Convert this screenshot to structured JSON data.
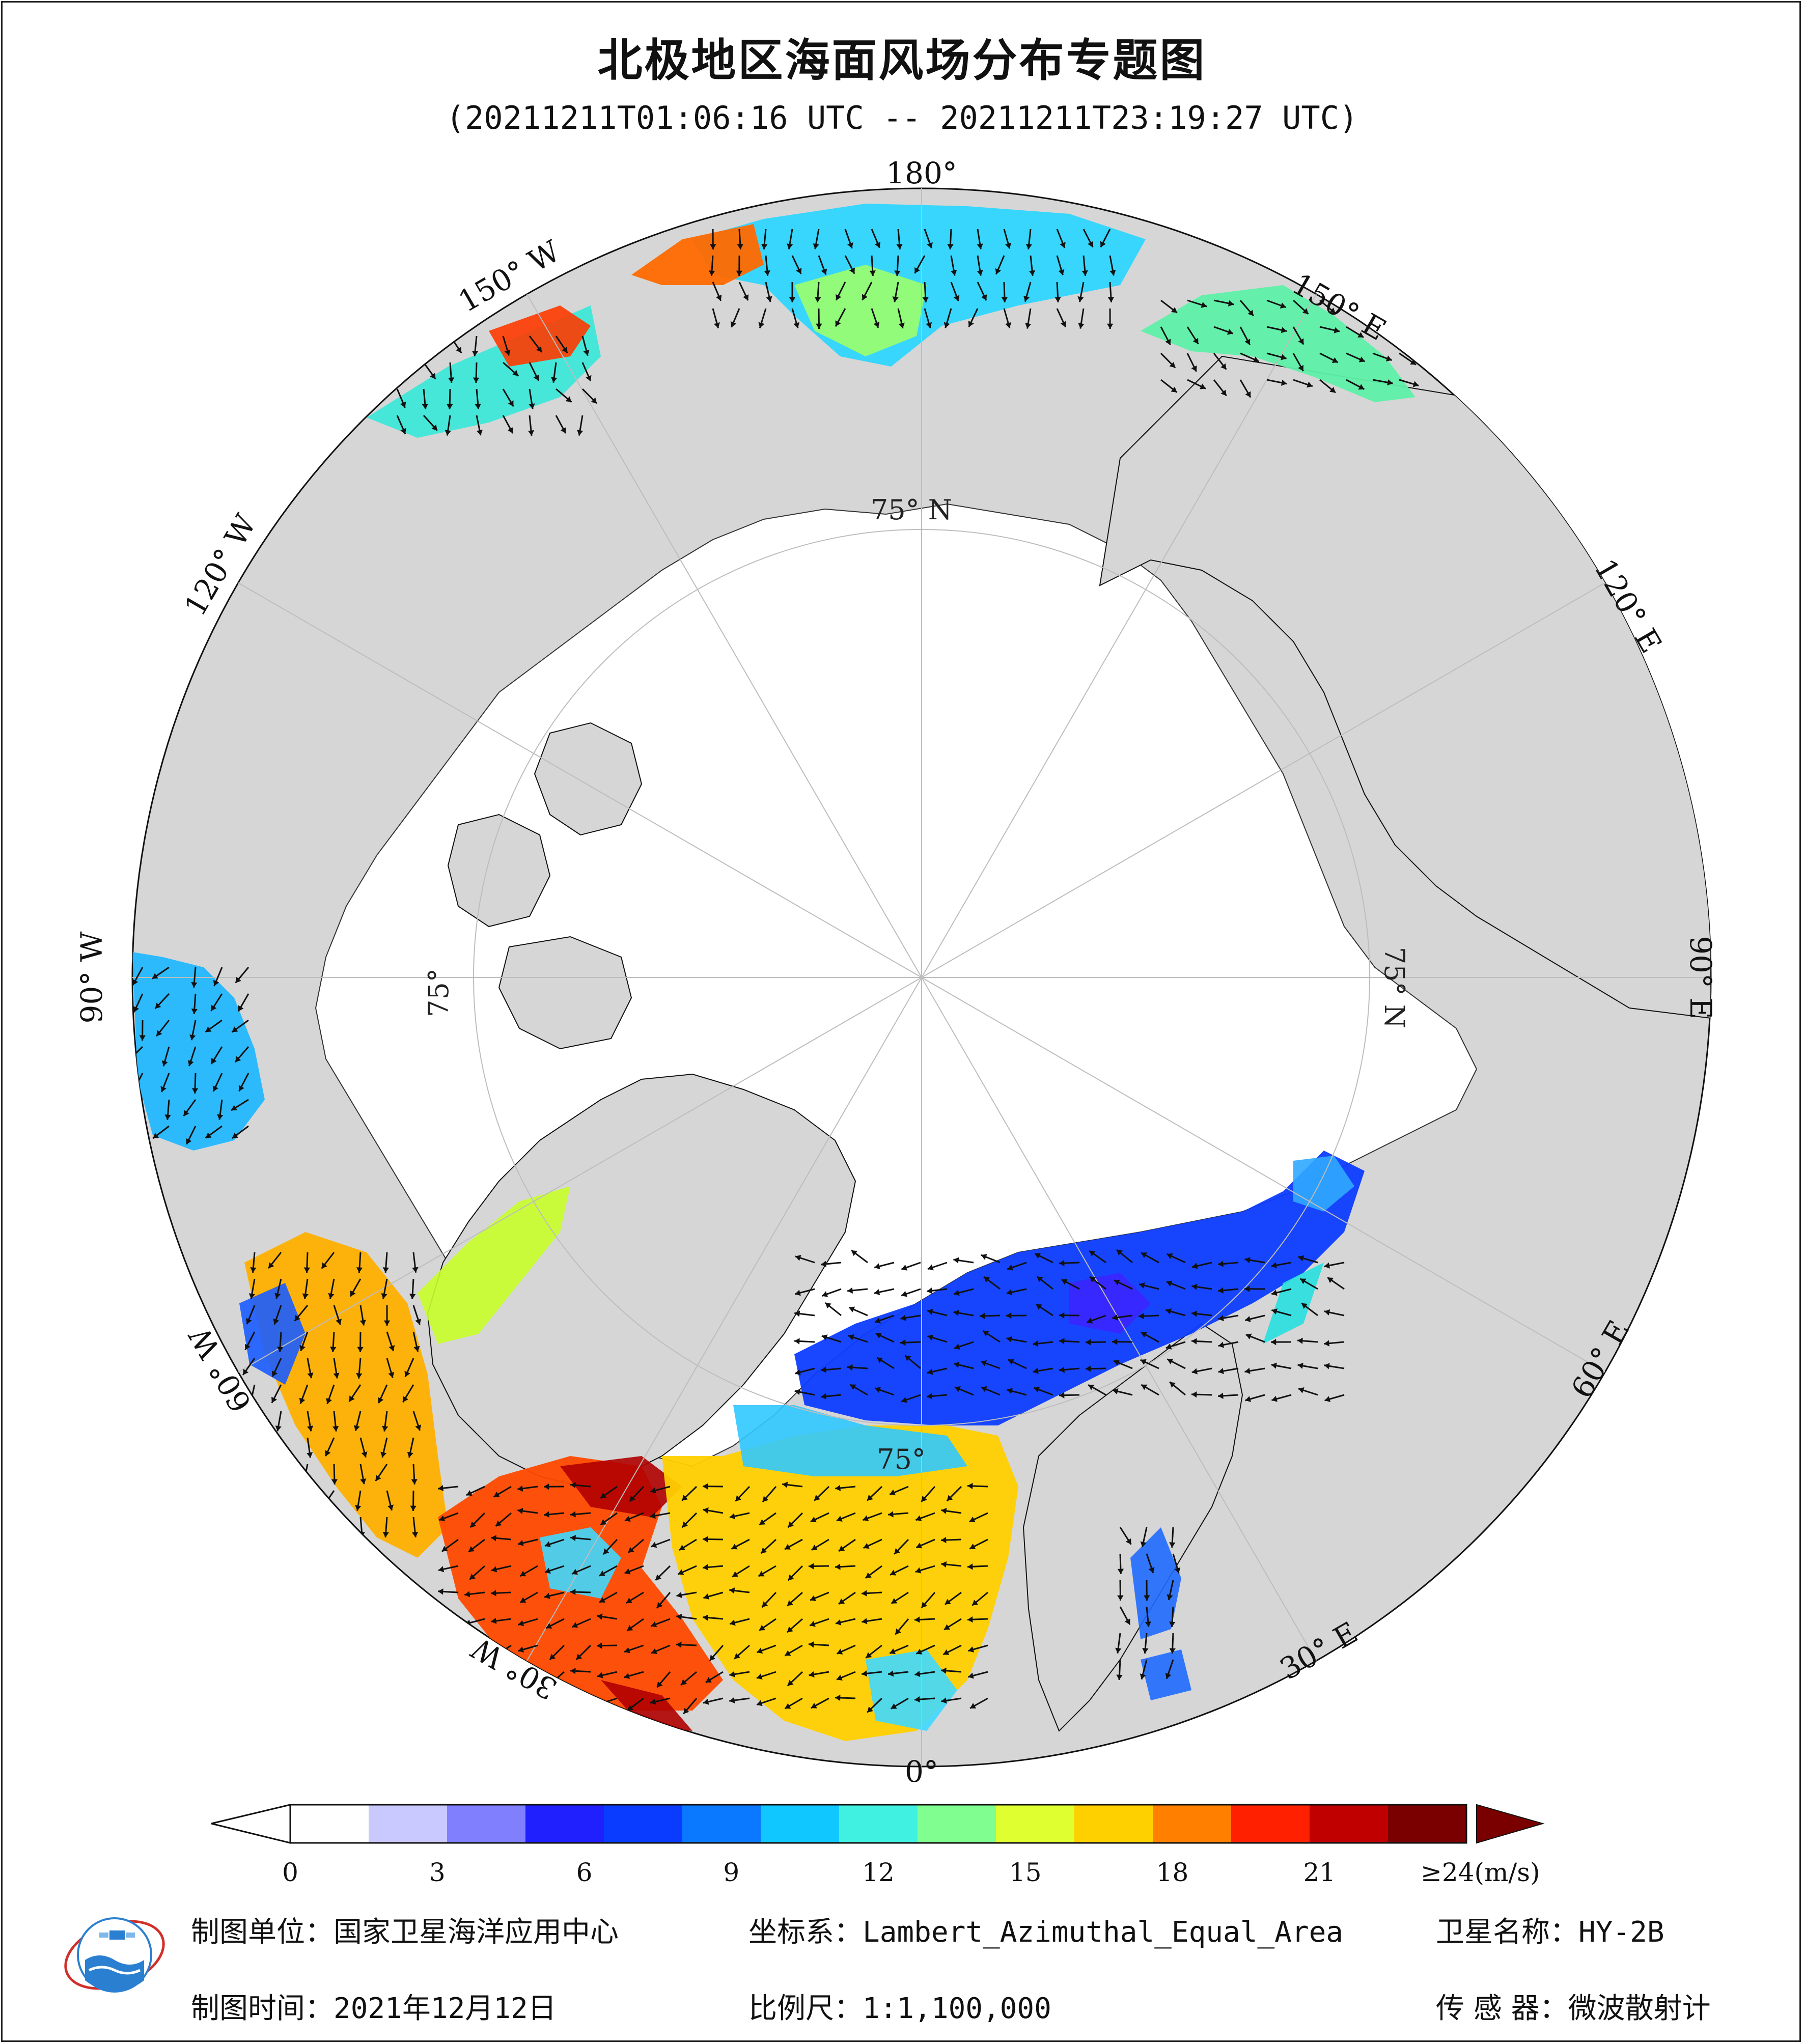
{
  "title": "北极地区海面风场分布专题图",
  "time_range": "(20211211T01:06:16 UTC -- 20211211T23:19:27 UTC)",
  "map": {
    "projection": "Lambert_Azimuthal_Equal_Area",
    "lon_labels": [
      "180°",
      "150° E",
      "120° E",
      "90° E",
      "60° E",
      "30° E",
      "0°",
      "30° W",
      "60° W",
      "90° W",
      "120° W",
      "150° W"
    ],
    "lat_labels": [
      "75° N",
      "75° N",
      "75°",
      "75°"
    ],
    "colors": {
      "ocean_bg": "#d6d6d6",
      "land": "#ffffff",
      "grid": "#bdbdbd"
    }
  },
  "colorbar": {
    "unit_label": "≥24(m/s)",
    "ticks": [
      "0",
      "3",
      "6",
      "9",
      "12",
      "15",
      "18",
      "21"
    ],
    "tick_values": [
      0,
      3,
      6,
      9,
      12,
      15,
      18,
      21
    ],
    "range": [
      0,
      24
    ],
    "colors": [
      "#ffffff",
      "#c9c9ff",
      "#8080ff",
      "#2020ff",
      "#0a3cff",
      "#0a78ff",
      "#10c8ff",
      "#40f0e0",
      "#80ff90",
      "#e0ff30",
      "#ffd000",
      "#ff8000",
      "#ff2000",
      "#c00000",
      "#7a0000"
    ]
  },
  "footer": {
    "unit_label": "制图单位：",
    "unit_value": "国家卫星海洋应用中心",
    "date_label": "制图时间：",
    "date_value": "2021年12月12日",
    "coord_label": "坐标系：",
    "coord_value": "Lambert_Azimuthal_Equal_Area",
    "scale_label": "比例尺：",
    "scale_value": "1:1,100,000",
    "satellite_label": "卫星名称：",
    "satellite_value": "HY-2B",
    "sensor_label": "传 感 器：",
    "sensor_value": "微波散射计"
  }
}
